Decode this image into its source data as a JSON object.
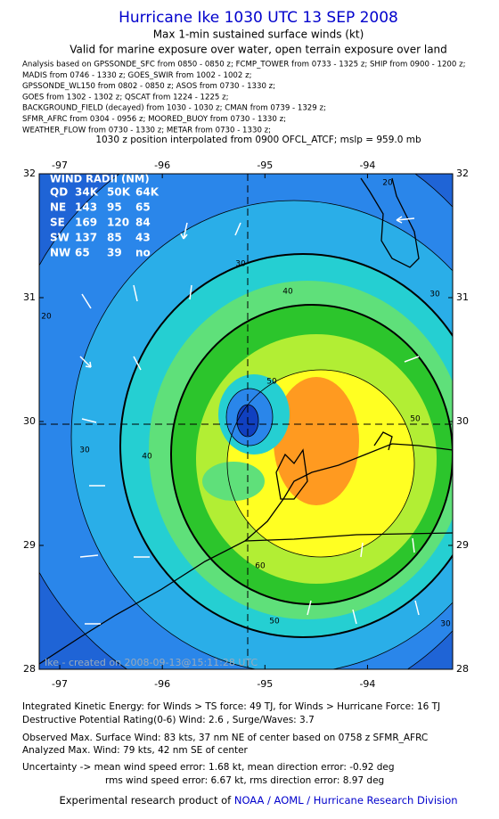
{
  "header": {
    "title": "Hurricane Ike 1030 UTC 13 SEP 2008",
    "subtitle": "Max 1-min sustained surface winds (kt)",
    "validity": "Valid for marine exposure over water, open terrain exposure over land",
    "analysis_lines": [
      "Analysis based on  GPSSONDE_SFC from 0850 - 0850 z;  FCMP_TOWER from 0733 - 1325 z;  SHIP from 0900 - 1200 z;",
      "MADIS from 0746 - 1330 z;  GOES_SWIR from 1002 - 1002 z;",
      "GPSSONDE_WL150 from 0802 - 0850 z;  ASOS from 0730 - 1330 z;",
      "GOES from 1302 - 1302 z;  QSCAT from 1224 - 1225 z;",
      "BACKGROUND_FIELD (decayed) from 1030 - 1030 z;  CMAN from 0739 - 1329 z;",
      "SFMR_AFRC from 0304 - 0956 z;  MOORED_BUOY from 0730 - 1330 z;",
      "WEATHER_FLOW from 0730 - 1330 z;  METAR from 0730 - 1330 z;"
    ],
    "position_line": "1030 z position interpolated from 0900 OFCL_ATCF; mslp = 959.0 mb"
  },
  "map": {
    "xlim": [
      -97.2,
      -93.17
    ],
    "ylim": [
      28,
      32
    ],
    "xticks": [
      -97,
      -96,
      -95,
      -94
    ],
    "yticks": [
      28,
      29,
      30,
      31,
      32
    ],
    "wind_radii": {
      "title": "WIND RADII (NM)",
      "rows": [
        [
          "QD",
          "34K",
          "50K",
          "64K"
        ],
        [
          "NE",
          143,
          95,
          65
        ],
        [
          "SE",
          169,
          120,
          84
        ],
        [
          "SW",
          137,
          85,
          43
        ],
        [
          "NW",
          65,
          39,
          "no"
        ]
      ]
    },
    "contour_labels": [
      20,
      30,
      20,
      30,
      40,
      30,
      40,
      50,
      50,
      60,
      50,
      30
    ],
    "credit": "Ike - created on 2008-09-13@15:11:28 UTC"
  },
  "footer": {
    "lines": [
      "Integrated Kinetic Energy:  for Winds > TS force: 49 TJ,  for Winds > Hurricane Force: 16 TJ",
      "Destructive Potential Rating(0-6)   Wind: 2.6 , Surge/Waves: 3.7",
      "Observed Max. Surface Wind: 83 kts, 37 nm NE of center based on 0758 z SFMR_AFRC",
      "Analyzed Max. Wind: 79 kts, 42 nm SE of center",
      "Uncertainty -> mean wind speed error: 1.68 kt,   mean direction error:  -0.92 deg",
      "rms wind speed error: 6.67 kt,   rms direction error: 8.97 deg"
    ],
    "credit_prefix": "Experimental research product of",
    "credit_link": "NOAA / AOML / Hurricane Research Division"
  }
}
